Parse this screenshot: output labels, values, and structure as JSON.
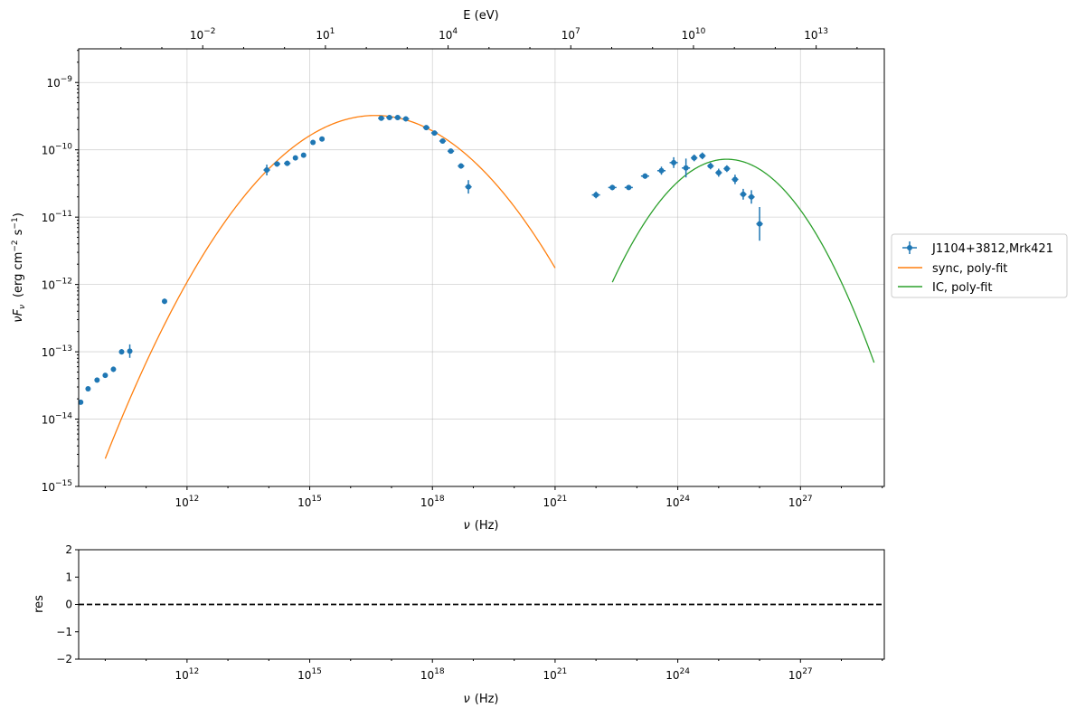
{
  "chart_data": [
    {
      "type": "scatter",
      "name": "sed-panel",
      "xscale": "log",
      "yscale": "log",
      "xlim_log10": [
        9.35,
        29.05
      ],
      "ylim_log10": [
        -15,
        -8.5
      ],
      "xlabel": {
        "base": "ν",
        "unit": "(Hz)"
      },
      "ylabel": {
        "prefix": "ν",
        "sub": "F",
        "sub2": "ν",
        "unit1": "(erg cm",
        "exp1": "−2",
        "unit2": "s",
        "exp2": "−1",
        "close": ")"
      },
      "top_axis": {
        "label": "E (eV)",
        "ticks_log10": [
          -2,
          1,
          4,
          7,
          10,
          13
        ],
        "tick_labels": [
          {
            "base": "10",
            "exp": "−2"
          },
          {
            "base": "10",
            "exp": "1"
          },
          {
            "base": "10",
            "exp": "4"
          },
          {
            "base": "10",
            "exp": "7"
          },
          {
            "base": "10",
            "exp": "10"
          },
          {
            "base": "10",
            "exp": "13"
          }
        ]
      },
      "x_ticks_log10": [
        12,
        15,
        18,
        21,
        24,
        27
      ],
      "x_tick_labels": [
        {
          "base": "10",
          "exp": "12"
        },
        {
          "base": "10",
          "exp": "15"
        },
        {
          "base": "10",
          "exp": "18"
        },
        {
          "base": "10",
          "exp": "21"
        },
        {
          "base": "10",
          "exp": "24"
        },
        {
          "base": "10",
          "exp": "27"
        }
      ],
      "y_ticks_log10": [
        -15,
        -14,
        -13,
        -12,
        -11,
        -10,
        -9
      ],
      "y_tick_labels": [
        {
          "base": "10",
          "exp": "−15"
        },
        {
          "base": "10",
          "exp": "−14"
        },
        {
          "base": "10",
          "exp": "−13"
        },
        {
          "base": "10",
          "exp": "−12"
        },
        {
          "base": "10",
          "exp": "−11"
        },
        {
          "base": "10",
          "exp": "−10"
        },
        {
          "base": "10",
          "exp": "−9"
        }
      ],
      "grid": true,
      "legend_position": "outside-right",
      "series": [
        {
          "name": "J1104+3812,Mrk421",
          "kind": "errorbar",
          "color": "#1f77b4",
          "points_log10": [
            [
              9.4,
              -13.75,
              0.02,
              0.03
            ],
            [
              9.58,
              -13.55,
              0.03,
              0.03
            ],
            [
              9.8,
              -13.42,
              0.03,
              0.03
            ],
            [
              10.0,
              -13.35,
              0.03,
              0.03
            ],
            [
              10.2,
              -13.26,
              0.03,
              0.04
            ],
            [
              10.4,
              -13.0,
              0.03,
              0.04
            ],
            [
              10.6,
              -12.99,
              0.04,
              0.1
            ],
            [
              11.45,
              -12.25,
              0.05,
              0.04
            ],
            [
              13.95,
              -10.3,
              0.08,
              0.08
            ],
            [
              14.2,
              -10.21,
              0.08,
              0.04
            ],
            [
              14.45,
              -10.2,
              0.08,
              0.04
            ],
            [
              14.65,
              -10.12,
              0.06,
              0.03
            ],
            [
              14.85,
              -10.08,
              0.06,
              0.03
            ],
            [
              15.08,
              -9.89,
              0.06,
              0.03
            ],
            [
              15.3,
              -9.84,
              0.06,
              0.03
            ],
            [
              16.75,
              -9.53,
              0.08,
              0.02
            ],
            [
              16.95,
              -9.52,
              0.08,
              0.02
            ],
            [
              17.15,
              -9.52,
              0.08,
              0.02
            ],
            [
              17.35,
              -9.54,
              0.08,
              0.02
            ],
            [
              17.85,
              -9.67,
              0.08,
              0.02
            ],
            [
              18.05,
              -9.75,
              0.08,
              0.02
            ],
            [
              18.25,
              -9.87,
              0.08,
              0.02
            ],
            [
              18.45,
              -10.02,
              0.08,
              0.03
            ],
            [
              18.7,
              -10.24,
              0.08,
              0.04
            ],
            [
              18.88,
              -10.55,
              0.08,
              0.1
            ],
            [
              22.0,
              -10.67,
              0.1,
              0.05
            ],
            [
              22.4,
              -10.56,
              0.1,
              0.04
            ],
            [
              22.8,
              -10.56,
              0.1,
              0.03
            ],
            [
              23.2,
              -10.39,
              0.1,
              0.04
            ],
            [
              23.6,
              -10.31,
              0.1,
              0.06
            ],
            [
              23.9,
              -10.19,
              0.1,
              0.08
            ],
            [
              24.2,
              -10.27,
              0.1,
              0.14
            ],
            [
              24.4,
              -10.12,
              0.08,
              0.05
            ],
            [
              24.6,
              -10.09,
              0.08,
              0.05
            ],
            [
              24.8,
              -10.24,
              0.08,
              0.05
            ],
            [
              25.0,
              -10.34,
              0.08,
              0.06
            ],
            [
              25.2,
              -10.28,
              0.08,
              0.05
            ],
            [
              25.4,
              -10.44,
              0.08,
              0.07
            ],
            [
              25.6,
              -10.66,
              0.08,
              0.08
            ],
            [
              25.8,
              -10.7,
              0.08,
              0.1
            ],
            [
              26.0,
              -11.1,
              0.08,
              0.25
            ]
          ]
        },
        {
          "name": "sync, poly-fit",
          "kind": "line",
          "color": "#ff7f0e",
          "x_range_log10": [
            10.0,
            21.0
          ],
          "peak_log10": [
            16.6,
            -9.49
          ],
          "curvature": 0.117
        },
        {
          "name": "IC, poly-fit",
          "kind": "line",
          "color": "#2ca02c",
          "x_range_log10": [
            22.4,
            28.8
          ],
          "peak_log10": [
            25.2,
            -10.14
          ],
          "curvature": 0.233
        }
      ]
    },
    {
      "type": "line",
      "name": "residual-panel",
      "xscale": "log",
      "xlim_log10": [
        9.35,
        29.05
      ],
      "ylim": [
        -2,
        2
      ],
      "ylabel": "res",
      "xlabel": {
        "base": "ν",
        "unit": "(Hz)"
      },
      "x_ticks_log10": [
        12,
        15,
        18,
        21,
        24,
        27
      ],
      "x_tick_labels": [
        {
          "base": "10",
          "exp": "12"
        },
        {
          "base": "10",
          "exp": "15"
        },
        {
          "base": "10",
          "exp": "18"
        },
        {
          "base": "10",
          "exp": "21"
        },
        {
          "base": "10",
          "exp": "24"
        },
        {
          "base": "10",
          "exp": "27"
        }
      ],
      "y_ticks": [
        -2,
        -1,
        0,
        1,
        2
      ],
      "y_tick_labels": [
        "−2",
        "−1",
        "0",
        "1",
        "2"
      ],
      "reference_line": {
        "y": 0,
        "style": "dashed",
        "color": "#000000"
      }
    }
  ]
}
